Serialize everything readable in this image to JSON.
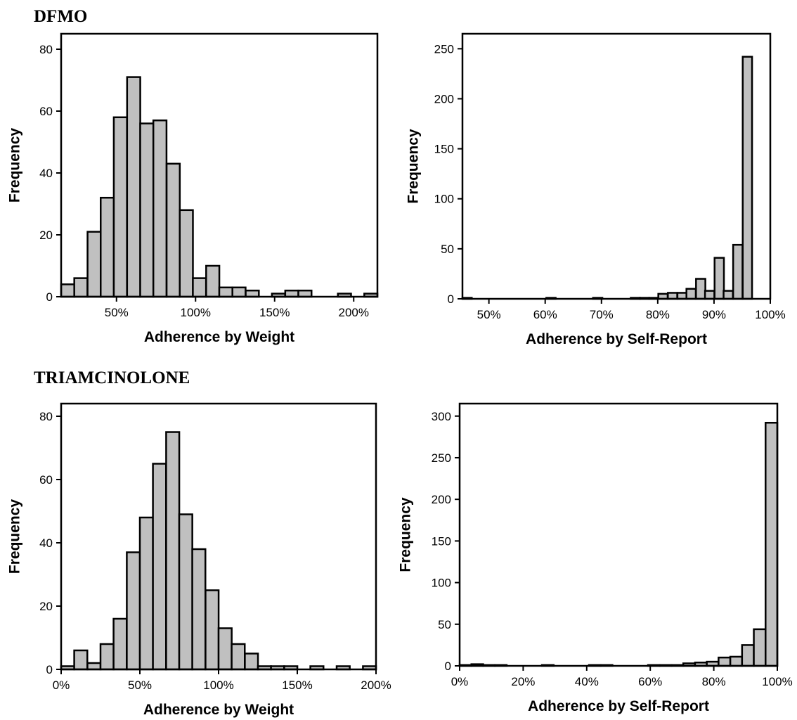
{
  "sections": {
    "top": "DFMO",
    "bottom": "TRIAMCINOLONE"
  },
  "colors": {
    "bar_fill": "#c0c0c0",
    "bar_stroke": "#000000"
  },
  "chart_data": [
    {
      "type": "bar",
      "title": "",
      "group": "DFMO",
      "xlabel": "Adherence by Weight",
      "ylabel": "Frequency",
      "xlim": [
        15,
        215
      ],
      "ylim": [
        0,
        85
      ],
      "xticks": [
        50,
        100,
        150,
        200
      ],
      "xtick_labels": [
        "50%",
        "100%",
        "150%",
        "200%"
      ],
      "yticks": [
        0,
        20,
        40,
        60,
        80
      ],
      "ytick_labels": [
        "0",
        "20",
        "40",
        "60",
        "80"
      ],
      "bin_width": 8.33,
      "x": [
        15,
        23.3,
        31.7,
        40,
        48.3,
        56.7,
        65,
        73.3,
        81.7,
        90,
        98.3,
        106.7,
        115,
        123.3,
        131.7,
        140,
        148.3,
        156.7,
        165,
        173.3,
        181.7,
        190,
        198.3,
        206.7
      ],
      "values": [
        4,
        6,
        21,
        32,
        58,
        71,
        56,
        57,
        43,
        28,
        6,
        10,
        3,
        3,
        2,
        0,
        1,
        2,
        2,
        0,
        0,
        1,
        0,
        1
      ]
    },
    {
      "type": "bar",
      "title": "",
      "group": "DFMO",
      "xlabel": "Adherence by Self-Report",
      "ylabel": "Frequency",
      "xlim": [
        45.3,
        100
      ],
      "ylim": [
        0,
        265
      ],
      "xticks": [
        50,
        60,
        70,
        80,
        90,
        100
      ],
      "xtick_labels": [
        "50%",
        "60%",
        "70%",
        "80%",
        "90%",
        "100%"
      ],
      "yticks": [
        0,
        50,
        100,
        150,
        200,
        250
      ],
      "ytick_labels": [
        "0",
        "50",
        "100",
        "150",
        "200",
        "250"
      ],
      "bin_width": 1.66,
      "x": [
        45.3,
        47,
        48.6,
        50.3,
        51.9,
        53.6,
        55.2,
        56.9,
        58.6,
        60.2,
        61.9,
        63.5,
        65.2,
        66.9,
        68.5,
        70.2,
        71.8,
        73.5,
        75.2,
        76.8,
        78.5,
        80.1,
        81.8,
        83.5,
        85.1,
        86.8,
        88.4,
        90.1,
        91.7,
        93.4,
        95.1,
        96.7,
        98.4
      ],
      "values": [
        1,
        0,
        0,
        0,
        0,
        0,
        0,
        0,
        0,
        1,
        0,
        0,
        0,
        0,
        1,
        0,
        0,
        0,
        1,
        1,
        1,
        5,
        6,
        6,
        10,
        20,
        8,
        41,
        8,
        54,
        242,
        0,
        0
      ]
    },
    {
      "type": "bar",
      "title": "",
      "group": "TRIAMCINOLONE",
      "xlabel": "Adherence by Weight",
      "ylabel": "Frequency",
      "xlim": [
        0,
        200
      ],
      "ylim": [
        0,
        84
      ],
      "xticks": [
        0,
        50,
        100,
        150,
        200
      ],
      "xtick_labels": [
        "0%",
        "50%",
        "100%",
        "150%",
        "200%"
      ],
      "yticks": [
        0,
        20,
        40,
        60,
        80
      ],
      "ytick_labels": [
        "0",
        "20",
        "40",
        "60",
        "80"
      ],
      "bin_width": 8.33,
      "x": [
        0,
        8.3,
        16.7,
        25,
        33.3,
        41.7,
        50,
        58.3,
        66.7,
        75,
        83.3,
        91.7,
        100,
        108.3,
        116.7,
        125,
        133.3,
        141.7,
        150,
        158.3,
        166.7,
        175,
        183.3,
        191.7
      ],
      "values": [
        1,
        6,
        2,
        8,
        16,
        37,
        48,
        65,
        75,
        49,
        38,
        25,
        13,
        8,
        5,
        1,
        1,
        1,
        0,
        1,
        0,
        1,
        0,
        1
      ]
    },
    {
      "type": "bar",
      "title": "",
      "group": "TRIAMCINOLONE",
      "xlabel": "Adherence by Self-Report",
      "ylabel": "Frequency",
      "xlim": [
        0,
        100
      ],
      "ylim": [
        0,
        315
      ],
      "xticks": [
        0,
        20,
        40,
        60,
        80,
        100
      ],
      "xtick_labels": [
        "0%",
        "20%",
        "40%",
        "60%",
        "80%",
        "100%"
      ],
      "yticks": [
        0,
        50,
        100,
        150,
        200,
        250,
        300
      ],
      "ytick_labels": [
        "0",
        "50",
        "100",
        "150",
        "200",
        "250",
        "300"
      ],
      "bin_width": 3.7,
      "x": [
        0,
        3.7,
        7.4,
        11.1,
        14.8,
        18.5,
        22.2,
        25.9,
        29.6,
        33.3,
        37,
        40.7,
        44.4,
        48.1,
        51.9,
        55.6,
        59.3,
        63,
        66.7,
        70.4,
        74.1,
        77.8,
        81.5,
        85.2,
        88.9,
        92.6,
        96.3
      ],
      "values": [
        1,
        2,
        1,
        1,
        0,
        0,
        0,
        1,
        0,
        0,
        0,
        1,
        1,
        0,
        0,
        0,
        1,
        1,
        1,
        3,
        4,
        5,
        10,
        11,
        25,
        44,
        292
      ]
    }
  ]
}
